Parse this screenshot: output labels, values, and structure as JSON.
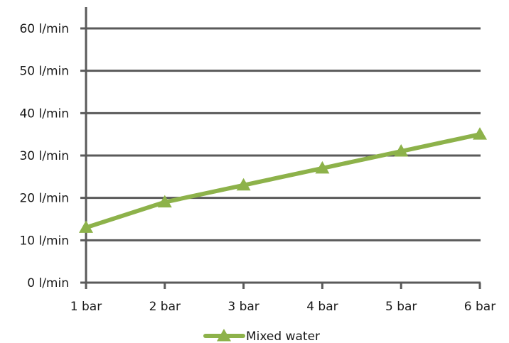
{
  "chart_data": {
    "type": "line",
    "x_categories": [
      "1 bar",
      "2 bar",
      "3 bar",
      "4 bar",
      "5 bar",
      "6 bar"
    ],
    "y_tick_labels": [
      "0 l/min",
      "10 l/min",
      "20 l/min",
      "30 l/min",
      "40 l/min",
      "50 l/min",
      "60 l/min"
    ],
    "ylim": [
      0,
      60
    ],
    "y_tick_step": 10,
    "grid": "horizontal",
    "legend_position": "bottom",
    "series": [
      {
        "name": "Mixed water",
        "values": [
          13,
          19,
          23,
          27,
          31,
          35
        ],
        "color": "#8db24a",
        "marker": "triangle"
      }
    ]
  },
  "colors": {
    "axis": "#5a5a5a",
    "grid": "#5a5a5a"
  }
}
